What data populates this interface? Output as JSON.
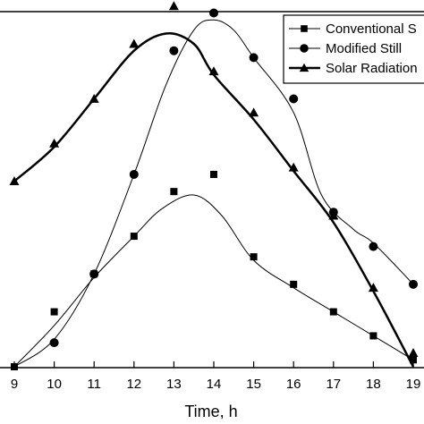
{
  "chart_data": {
    "type": "line",
    "xlabel": "Time, h",
    "ylabel": "",
    "xlim": [
      9,
      19
    ],
    "ylim": [
      0,
      100
    ],
    "x_ticks": [
      9,
      10,
      11,
      12,
      13,
      14,
      15,
      16,
      17,
      18,
      19
    ],
    "grid": false,
    "legend_position": "top-right",
    "series": [
      {
        "name": "Conventional S",
        "marker": "square",
        "line_width": 1,
        "x": [
          9,
          10,
          11,
          12,
          13,
          14,
          15,
          16,
          17,
          18,
          19
        ],
        "y": [
          0,
          16,
          27,
          38,
          51,
          56,
          32,
          24,
          16,
          9,
          2
        ],
        "fit_x": [
          9,
          10,
          11,
          12,
          12.7,
          13.5,
          14.2,
          15,
          16,
          17,
          18,
          19
        ],
        "fit_y": [
          0,
          12,
          26,
          38,
          46,
          50,
          44,
          31,
          23,
          16,
          9,
          2
        ]
      },
      {
        "name": "Modified Still",
        "marker": "circle",
        "line_width": 1,
        "x": [
          10,
          11,
          12,
          13,
          14,
          15,
          16,
          17,
          18,
          19
        ],
        "y": [
          7,
          27,
          56,
          92,
          103,
          90,
          78,
          45,
          35,
          24
        ],
        "fit_x": [
          9,
          10,
          11,
          12,
          12.8,
          13.5,
          14,
          14.5,
          15,
          16,
          16.7,
          17.5,
          18,
          19
        ],
        "fit_y": [
          0,
          8,
          27,
          56,
          82,
          98,
          101,
          98,
          90,
          74,
          50,
          40,
          36,
          24
        ],
        "fit_y_note": ""
      },
      {
        "name": "Solar Radiation",
        "marker": "triangle",
        "line_width": 2.5,
        "x": [
          9,
          10,
          11,
          12,
          13,
          14,
          15,
          16,
          17,
          18,
          19
        ],
        "y": [
          54,
          65,
          78,
          94,
          105,
          86,
          74,
          58,
          44,
          23,
          4
        ],
        "fit_x": [
          9,
          10,
          11,
          12,
          12.8,
          13.5,
          14,
          15,
          16,
          17,
          18,
          19
        ],
        "fit_y": [
          54,
          64,
          78,
          92,
          97,
          94,
          85,
          72,
          57,
          42,
          22,
          0
        ]
      }
    ]
  }
}
